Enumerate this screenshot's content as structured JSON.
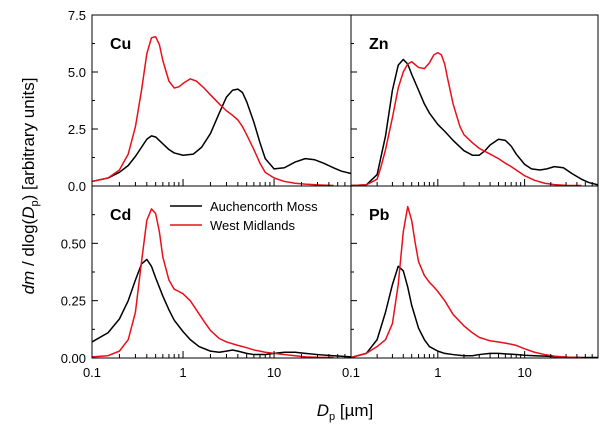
{
  "chart_data": {
    "type": "line",
    "xlabel": "D_p [µm]",
    "xlabel_parts": {
      "base": "D",
      "sub": "p",
      "unit": " [µm]"
    },
    "ylabel": "dm / dlog(Dp) [arbitrary units]",
    "ylabel_parts": {
      "pre": "dm / dlog(",
      "base": "D",
      "sub": "p",
      "post": ") [arbitrary units]"
    },
    "xscale": "log",
    "xlim": [
      0.1,
      70
    ],
    "x_ticks": [
      0.1,
      1,
      10
    ],
    "x_tick_labels": [
      "0.1",
      "1",
      "10"
    ],
    "legend": {
      "placement": "inside Cd panel, upper right",
      "entries": [
        {
          "name": "Auchencorth Moss",
          "color": "#000000"
        },
        {
          "name": "West Midlands",
          "color": "#e8101a"
        }
      ]
    },
    "series_colors": {
      "Auchencorth Moss": "#000000",
      "West Midlands": "#e8101a"
    },
    "panels": [
      {
        "label": "Cu",
        "position": "top-left",
        "ylim": [
          0,
          7.5
        ],
        "y_ticks": [
          0,
          2.5,
          5,
          7.5
        ],
        "y_tick_labels": [
          "0.0",
          "2.5",
          "5.0",
          "7.5"
        ],
        "series": [
          {
            "name": "Auchencorth Moss",
            "x": [
              0.1,
              0.15,
              0.2,
              0.25,
              0.3,
              0.35,
              0.4,
              0.45,
              0.5,
              0.6,
              0.7,
              0.8,
              1.0,
              1.3,
              1.6,
              2.0,
              2.5,
              3.0,
              3.5,
              4.0,
              4.5,
              5.0,
              6.0,
              7.0,
              8.0,
              10,
              13,
              17,
              22,
              28,
              35,
              45,
              55,
              70
            ],
            "y": [
              0.2,
              0.35,
              0.6,
              0.9,
              1.3,
              1.7,
              2.05,
              2.2,
              2.15,
              1.85,
              1.6,
              1.45,
              1.35,
              1.4,
              1.7,
              2.3,
              3.2,
              3.9,
              4.2,
              4.25,
              4.1,
              3.7,
              2.8,
              1.9,
              1.2,
              0.75,
              0.8,
              1.05,
              1.2,
              1.15,
              1.0,
              0.8,
              0.65,
              0.55
            ]
          },
          {
            "name": "West Midlands",
            "x": [
              0.1,
              0.15,
              0.2,
              0.25,
              0.3,
              0.35,
              0.4,
              0.45,
              0.5,
              0.55,
              0.6,
              0.7,
              0.8,
              0.9,
              1.0,
              1.2,
              1.4,
              1.7,
              2.0,
              2.5,
              3.0,
              3.5,
              4.0,
              4.5,
              5.0,
              6.0,
              7.0,
              8.0,
              10,
              13,
              17,
              22,
              30,
              45
            ],
            "y": [
              0.2,
              0.35,
              0.7,
              1.4,
              2.6,
              4.2,
              5.8,
              6.5,
              6.55,
              6.2,
              5.5,
              4.6,
              4.3,
              4.35,
              4.5,
              4.7,
              4.6,
              4.3,
              4.0,
              3.6,
              3.3,
              3.1,
              2.9,
              2.6,
              2.25,
              1.6,
              1.0,
              0.6,
              0.35,
              0.2,
              0.12,
              0.08,
              0.05,
              0.02
            ]
          }
        ]
      },
      {
        "label": "Zn",
        "position": "top-right",
        "ylim": [
          0,
          7.5
        ],
        "series": [
          {
            "name": "Auchencorth Moss",
            "x": [
              0.1,
              0.15,
              0.2,
              0.25,
              0.3,
              0.35,
              0.4,
              0.45,
              0.5,
              0.6,
              0.7,
              0.8,
              1.0,
              1.2,
              1.5,
              2.0,
              2.5,
              3.0,
              3.5,
              4.0,
              5.0,
              6.0,
              7.0,
              8.0,
              10,
              12,
              15,
              18,
              22,
              28,
              35,
              45,
              55,
              70
            ],
            "y": [
              0.02,
              0.05,
              0.5,
              2.2,
              4.2,
              5.3,
              5.55,
              5.35,
              4.9,
              4.2,
              3.6,
              3.2,
              2.7,
              2.4,
              2.0,
              1.55,
              1.35,
              1.35,
              1.55,
              1.8,
              2.05,
              2.0,
              1.75,
              1.4,
              0.95,
              0.75,
              0.7,
              0.75,
              0.85,
              0.8,
              0.55,
              0.3,
              0.15,
              0.05
            ]
          },
          {
            "name": "West Midlands",
            "x": [
              0.1,
              0.15,
              0.2,
              0.22,
              0.25,
              0.3,
              0.35,
              0.4,
              0.45,
              0.5,
              0.6,
              0.7,
              0.8,
              0.9,
              1.0,
              1.1,
              1.2,
              1.3,
              1.5,
              1.8,
              2.0,
              2.5,
              3.0,
              4.0,
              5.0,
              6.0,
              7.0,
              8.0,
              10,
              13,
              17,
              22,
              30,
              45
            ],
            "y": [
              0.02,
              0.05,
              0.3,
              0.8,
              1.6,
              3.0,
              4.3,
              5.0,
              5.35,
              5.45,
              5.2,
              5.15,
              5.4,
              5.75,
              5.85,
              5.75,
              5.35,
              4.7,
              3.6,
              2.6,
              2.25,
              1.9,
              1.65,
              1.4,
              1.2,
              1.0,
              0.85,
              0.7,
              0.45,
              0.25,
              0.12,
              0.06,
              0.03,
              0.01
            ]
          }
        ]
      },
      {
        "label": "Cd",
        "position": "bottom-left",
        "ylim": [
          0,
          0.75
        ],
        "y_ticks": [
          0,
          0.25,
          0.5
        ],
        "y_tick_labels": [
          "0.00",
          "0.25",
          "0.50"
        ],
        "series": [
          {
            "name": "Auchencorth Moss",
            "x": [
              0.1,
              0.15,
              0.2,
              0.25,
              0.3,
              0.35,
              0.4,
              0.45,
              0.5,
              0.6,
              0.7,
              0.8,
              1.0,
              1.2,
              1.5,
              2.0,
              2.5,
              3.0,
              3.5,
              4.0,
              5.0,
              6.0,
              7.0,
              8.0,
              10,
              13,
              17,
              22,
              30,
              45,
              70
            ],
            "y": [
              0.07,
              0.11,
              0.17,
              0.25,
              0.34,
              0.41,
              0.43,
              0.4,
              0.35,
              0.27,
              0.21,
              0.165,
              0.115,
              0.08,
              0.05,
              0.03,
              0.025,
              0.03,
              0.035,
              0.03,
              0.02,
              0.015,
              0.015,
              0.015,
              0.02,
              0.025,
              0.025,
              0.02,
              0.015,
              0.01,
              0.005
            ]
          },
          {
            "name": "West Midlands",
            "x": [
              0.1,
              0.15,
              0.2,
              0.25,
              0.3,
              0.35,
              0.4,
              0.45,
              0.5,
              0.55,
              0.6,
              0.7,
              0.8,
              0.9,
              1.0,
              1.2,
              1.4,
              1.7,
              2.0,
              2.5,
              3.0,
              4.0,
              5.0,
              6.0,
              7.0,
              8.0,
              10,
              13,
              17,
              22,
              30,
              45
            ],
            "y": [
              0.005,
              0.01,
              0.03,
              0.08,
              0.2,
              0.42,
              0.6,
              0.65,
              0.63,
              0.55,
              0.44,
              0.34,
              0.3,
              0.29,
              0.28,
              0.25,
              0.21,
              0.16,
              0.12,
              0.085,
              0.07,
              0.055,
              0.045,
              0.035,
              0.03,
              0.025,
              0.02,
              0.015,
              0.01,
              0.005,
              0.003,
              0.001
            ]
          }
        ]
      },
      {
        "label": "Pb",
        "position": "bottom-right",
        "ylim": [
          0,
          0.75
        ],
        "series": [
          {
            "name": "Auchencorth Moss",
            "x": [
              0.1,
              0.15,
              0.2,
              0.25,
              0.3,
              0.35,
              0.4,
              0.45,
              0.5,
              0.6,
              0.7,
              0.8,
              1.0,
              1.2,
              1.5,
              2.0,
              2.5,
              3.0,
              4.0,
              5.0,
              6.0,
              8.0,
              10,
              13,
              17,
              22,
              30,
              45,
              70
            ],
            "y": [
              0.0,
              0.02,
              0.08,
              0.2,
              0.32,
              0.4,
              0.38,
              0.31,
              0.23,
              0.13,
              0.08,
              0.05,
              0.03,
              0.02,
              0.015,
              0.01,
              0.01,
              0.015,
              0.02,
              0.02,
              0.018,
              0.015,
              0.012,
              0.01,
              0.008,
              0.006,
              0.004,
              0.002,
              0.001
            ]
          },
          {
            "name": "West Midlands",
            "x": [
              0.1,
              0.15,
              0.2,
              0.25,
              0.3,
              0.35,
              0.4,
              0.45,
              0.5,
              0.55,
              0.6,
              0.7,
              0.8,
              0.9,
              1.0,
              1.2,
              1.5,
              2.0,
              2.5,
              3.0,
              4.0,
              5.0,
              6.0,
              7.0,
              8.0,
              10,
              13,
              17,
              22,
              30,
              45
            ],
            "y": [
              0.0,
              0.02,
              0.05,
              0.08,
              0.15,
              0.32,
              0.55,
              0.66,
              0.6,
              0.5,
              0.42,
              0.36,
              0.33,
              0.31,
              0.29,
              0.25,
              0.19,
              0.14,
              0.11,
              0.09,
              0.075,
              0.07,
              0.065,
              0.06,
              0.055,
              0.04,
              0.025,
              0.015,
              0.008,
              0.004,
              0.001
            ]
          }
        ]
      }
    ]
  }
}
